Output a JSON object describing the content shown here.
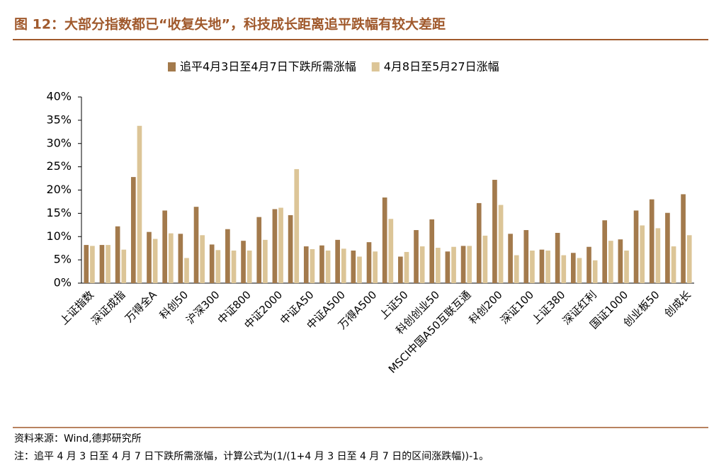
{
  "chart_data": {
    "type": "bar",
    "title": "图 12：大部分指数都已“收复失地”，科技成长距离追平跌幅有较大差距",
    "source": "资料来源：Wind,德邦研究所",
    "note": "注：追平 4 月 3 日至 4 月 7 日下跌所需涨幅，计算公式为(1/(1+4 月 3 日至 4 月 7 日的区间涨跌幅))-1。",
    "categories": [
      "上证指数",
      null,
      "深证成指",
      null,
      "万得全A",
      null,
      "科创50",
      null,
      "沪深300",
      null,
      "中证800",
      null,
      "中证2000",
      null,
      "中证A50",
      null,
      "中证A500",
      null,
      "万得A500",
      null,
      "上证50",
      null,
      "科创创业50",
      null,
      "MSCI中国A50互联互通",
      null,
      "科创200",
      null,
      "深证100",
      null,
      "上证380",
      null,
      "深证红利",
      null,
      "国证1000",
      null,
      "创业板50",
      null,
      "创成长"
    ],
    "series": [
      {
        "name": "追平4月3日至4月7日下跌所需涨幅",
        "color": "#a37a4c",
        "values": [
          8.2,
          8.2,
          12.2,
          22.8,
          11.0,
          15.6,
          10.6,
          16.4,
          8.3,
          11.6,
          9.1,
          14.2,
          15.9,
          14.6,
          7.9,
          8.1,
          9.3,
          7.0,
          8.8,
          18.4,
          5.7,
          11.4,
          13.7,
          6.8,
          8.0,
          17.2,
          22.2,
          10.6,
          11.4,
          7.2,
          10.8,
          6.5,
          7.8,
          13.5,
          9.4,
          15.6,
          18.0,
          15.1,
          19.1
        ]
      },
      {
        "name": "4月8日至5月27日涨幅",
        "color": "#dcc597",
        "values": [
          8.0,
          8.2,
          7.2,
          33.8,
          9.5,
          10.7,
          5.4,
          10.3,
          7.1,
          7.0,
          7.0,
          9.3,
          16.2,
          24.5,
          7.3,
          7.0,
          7.4,
          5.7,
          6.8,
          13.8,
          6.7,
          7.9,
          7.6,
          7.8,
          8.0,
          10.2,
          16.8,
          6.0,
          7.0,
          7.0,
          6.0,
          5.4,
          4.9,
          9.1,
          7.0,
          12.4,
          11.8,
          7.9,
          10.3
        ]
      }
    ],
    "ylim": [
      0,
      40
    ],
    "yticks": [
      {
        "value": 0,
        "label": "0%"
      },
      {
        "value": 5,
        "label": "5%"
      },
      {
        "value": 10,
        "label": "10%"
      },
      {
        "value": 15,
        "label": "15%"
      },
      {
        "value": 20,
        "label": "20%"
      },
      {
        "value": 25,
        "label": "25%"
      },
      {
        "value": 30,
        "label": "30%"
      },
      {
        "value": 35,
        "label": "35%"
      },
      {
        "value": 40,
        "label": "40%"
      }
    ],
    "grid": false,
    "legend": "top"
  }
}
